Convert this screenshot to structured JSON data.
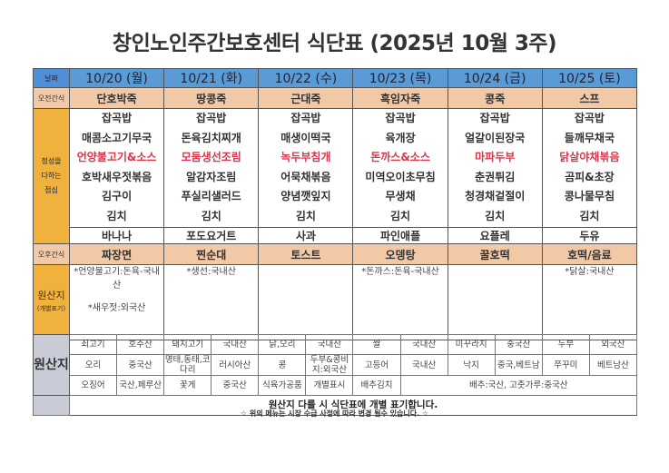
{
  "title": "창인노인주간보호센터 식단표 (2025년 10월 3주)",
  "labels": {
    "date": "날짜",
    "am_snack": "오전간식",
    "lunch": [
      "정성을",
      "다하는",
      "점심"
    ],
    "pm_snack": "오후간식",
    "origin": "원산지",
    "origin_sub": "(개별표기)",
    "origin_table": "원산지"
  },
  "days": [
    {
      "date": "10/20 (월)",
      "am_snack": "단호박죽",
      "lunch": [
        "잡곡밥",
        "매콤소고기무국",
        "언양불고기&소스",
        "호박새우젓볶음",
        "김구이",
        "김치"
      ],
      "fruit": "바나나",
      "pm_snack": "짜장면",
      "origin": [
        "*언양불고기:돈육-국내산",
        "*새우젓:외국산"
      ]
    },
    {
      "date": "10/21 (화)",
      "am_snack": "땅콩죽",
      "lunch": [
        "잡곡밥",
        "돈육김치찌개",
        "모둠생선조림",
        "알감자조림",
        "푸실리샐러드",
        "김치"
      ],
      "fruit": "포도요거트",
      "pm_snack": "찐순대",
      "origin": [
        "*생선:국내산"
      ]
    },
    {
      "date": "10/22 (수)",
      "am_snack": "근대죽",
      "lunch": [
        "잡곡밥",
        "매생이떡국",
        "녹두부침개",
        "어묵채볶음",
        "양념깻잎지",
        "김치"
      ],
      "fruit": "사과",
      "pm_snack": "토스트",
      "origin": []
    },
    {
      "date": "10/23 (목)",
      "am_snack": "흑임자죽",
      "lunch": [
        "잡곡밥",
        "육개장",
        "돈까스&소스",
        "미역오이초무침",
        "무생채",
        "김치"
      ],
      "fruit": "파인애플",
      "pm_snack": "오뎅탕",
      "origin": [
        "*돈까스:돈육-국내산"
      ]
    },
    {
      "date": "10/24 (금)",
      "am_snack": "콩죽",
      "lunch": [
        "잡곡밥",
        "얼갈이된장국",
        "마파두부",
        "춘권튀김",
        "청경채겉절이",
        "김치"
      ],
      "fruit": "요플레",
      "pm_snack": "꿀호떡",
      "origin": []
    },
    {
      "date": "10/25 (토)",
      "am_snack": "스프",
      "lunch": [
        "잡곡밥",
        "들깨무채국",
        "닭살야채볶음",
        "곰피&초장",
        "콩나물무침",
        "김치"
      ],
      "fruit": "두유",
      "pm_snack": "호떡/음료",
      "origin": [
        "*닭살:국내산"
      ]
    }
  ],
  "main_dish_color": "#d9364b",
  "origin_table": {
    "rows": [
      [
        "쇠고기",
        "호주산",
        "돼지고기",
        "국내산",
        "닭,오리",
        "국내산",
        "쌀",
        "국내산",
        "미꾸라지",
        "중국산",
        "두부",
        "외국산"
      ],
      [
        "오리",
        "중국산",
        "명태,동태,코다리",
        "러시아산",
        "콩",
        "두부&콩비지:외국산",
        "고등어",
        "국내산",
        "낙지",
        "중국,베트남",
        "쭈꾸미",
        "베트남산"
      ],
      [
        "오징어",
        "국산,페루산",
        "꽃게",
        "중국산",
        "식육가공품",
        "개별표시",
        "배추김치",
        "배추:국산, 고춧가루:중국산"
      ]
    ],
    "note": "원산지 다를 시 식단표에 개별 표기합니다."
  },
  "footer": "☆ 위의 메뉴는 시장 수급 사정에 따라 변경 될수 있습니다. ☆"
}
